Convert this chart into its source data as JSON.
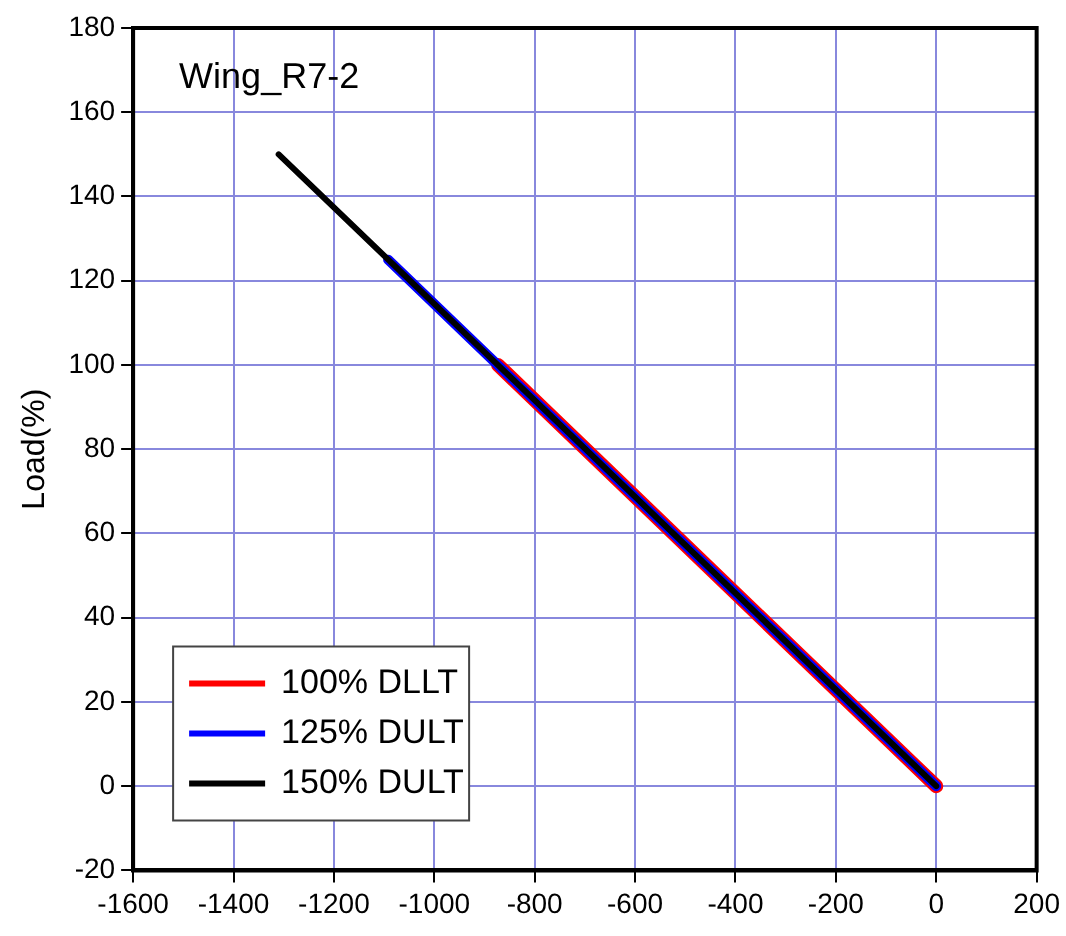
{
  "chart_data": {
    "type": "line",
    "title": "Wing_R7-2",
    "ylabel": "Load(%)",
    "series": [
      {
        "name": "100% DLLT",
        "color": "#ff0000",
        "x": [
          0,
          -873
        ],
        "values": [
          0,
          100
        ]
      },
      {
        "name": "125% DULT",
        "color": "#0000ff",
        "x": [
          0,
          -1092
        ],
        "values": [
          0,
          125
        ]
      },
      {
        "name": "150% DULT",
        "color": "#000000",
        "x": [
          0,
          -1310
        ],
        "values": [
          0,
          150
        ]
      }
    ],
    "xlim": [
      -1600,
      200
    ],
    "xticks": [
      -1600,
      -1400,
      -1200,
      -1000,
      -800,
      -600,
      -400,
      -200,
      0,
      200
    ],
    "ylim": [
      -20,
      180
    ],
    "yticks": [
      -20,
      0,
      20,
      40,
      60,
      80,
      100,
      120,
      140,
      160,
      180
    ],
    "grid": true,
    "legend": "bottom left",
    "marker": "none",
    "line_style": "solid"
  }
}
